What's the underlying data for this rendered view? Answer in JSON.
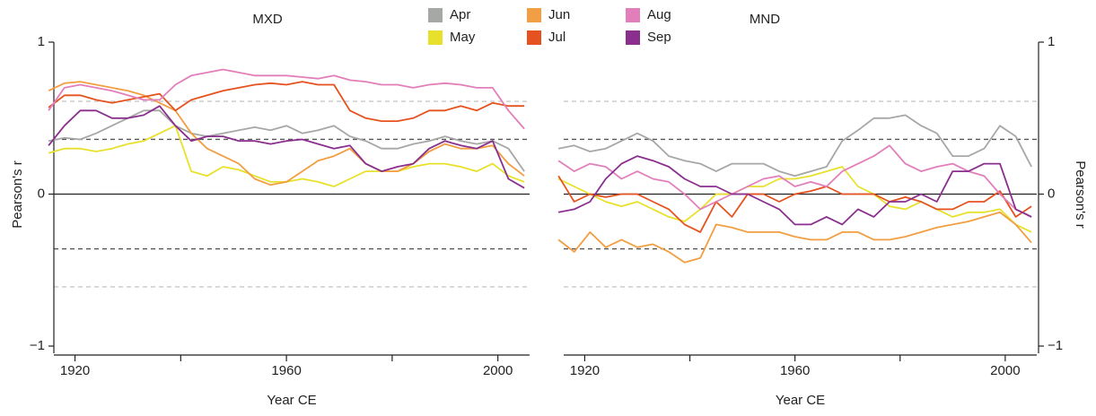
{
  "chart_data": [
    {
      "type": "line",
      "title": "MXD",
      "xlabel": "Year CE",
      "ylabel": "Pearson's r",
      "x": [
        1915,
        1918,
        1921,
        1924,
        1927,
        1930,
        1933,
        1936,
        1939,
        1942,
        1945,
        1948,
        1951,
        1954,
        1957,
        1960,
        1963,
        1966,
        1969,
        1972,
        1975,
        1978,
        1981,
        1984,
        1987,
        1990,
        1993,
        1996,
        1999,
        2002,
        2005
      ],
      "xlim": [
        1916,
        2006
      ],
      "xticks": [
        1920,
        1960,
        2000
      ],
      "xminorticks": [
        1940,
        1980
      ],
      "ylim": [
        -1,
        1
      ],
      "yticks": [
        {
          "value": -1,
          "label": "−1"
        },
        0,
        1
      ],
      "yaxis_side": "left",
      "reference_lines": [
        {
          "value": 0.61,
          "color": "#c8c8c8"
        },
        {
          "value": 0.36,
          "color": "#555555"
        },
        {
          "value": -0.36,
          "color": "#555555"
        },
        {
          "value": -0.61,
          "color": "#c8c8c8"
        }
      ],
      "series": [
        {
          "name": "Apr",
          "color": "#a5a8a5",
          "values": [
            0.35,
            0.37,
            0.36,
            0.4,
            0.45,
            0.5,
            0.55,
            0.55,
            0.45,
            0.4,
            0.38,
            0.4,
            0.42,
            0.44,
            0.42,
            0.45,
            0.4,
            0.42,
            0.45,
            0.38,
            0.35,
            0.3,
            0.3,
            0.33,
            0.35,
            0.38,
            0.35,
            0.33,
            0.35,
            0.3,
            0.15
          ]
        },
        {
          "name": "May",
          "color": "#e8e12c",
          "values": [
            0.27,
            0.3,
            0.3,
            0.28,
            0.3,
            0.33,
            0.35,
            0.4,
            0.45,
            0.15,
            0.12,
            0.18,
            0.16,
            0.12,
            0.08,
            0.08,
            0.1,
            0.08,
            0.05,
            0.1,
            0.15,
            0.15,
            0.15,
            0.18,
            0.2,
            0.2,
            0.18,
            0.15,
            0.2,
            0.12,
            0.08
          ]
        },
        {
          "name": "Jun",
          "color": "#f29e42",
          "values": [
            0.68,
            0.73,
            0.74,
            0.72,
            0.7,
            0.68,
            0.65,
            0.6,
            0.55,
            0.4,
            0.3,
            0.25,
            0.2,
            0.1,
            0.06,
            0.08,
            0.15,
            0.22,
            0.25,
            0.3,
            0.2,
            0.15,
            0.15,
            0.2,
            0.28,
            0.33,
            0.3,
            0.3,
            0.32,
            0.2,
            0.12
          ]
        },
        {
          "name": "Jul",
          "color": "#e6521f",
          "values": [
            0.57,
            0.65,
            0.65,
            0.62,
            0.6,
            0.62,
            0.64,
            0.66,
            0.55,
            0.62,
            0.65,
            0.68,
            0.7,
            0.72,
            0.73,
            0.72,
            0.74,
            0.72,
            0.72,
            0.55,
            0.5,
            0.48,
            0.48,
            0.5,
            0.55,
            0.55,
            0.58,
            0.55,
            0.6,
            0.58,
            0.58
          ]
        },
        {
          "name": "Aug",
          "color": "#e27fba",
          "values": [
            0.55,
            0.7,
            0.72,
            0.7,
            0.68,
            0.65,
            0.62,
            0.62,
            0.72,
            0.78,
            0.8,
            0.82,
            0.8,
            0.78,
            0.78,
            0.78,
            0.77,
            0.76,
            0.78,
            0.75,
            0.74,
            0.72,
            0.72,
            0.7,
            0.72,
            0.73,
            0.72,
            0.7,
            0.7,
            0.55,
            0.43
          ]
        },
        {
          "name": "Sep",
          "color": "#8a2f8e",
          "values": [
            0.32,
            0.45,
            0.55,
            0.55,
            0.5,
            0.5,
            0.52,
            0.58,
            0.45,
            0.35,
            0.38,
            0.38,
            0.35,
            0.35,
            0.33,
            0.35,
            0.36,
            0.33,
            0.3,
            0.32,
            0.2,
            0.15,
            0.18,
            0.2,
            0.3,
            0.35,
            0.32,
            0.3,
            0.35,
            0.1,
            0.04
          ]
        }
      ]
    },
    {
      "type": "line",
      "title": "MND",
      "xlabel": "Year CE",
      "ylabel": "Pearson's r",
      "x": [
        1915,
        1918,
        1921,
        1924,
        1927,
        1930,
        1933,
        1936,
        1939,
        1942,
        1945,
        1948,
        1951,
        1954,
        1957,
        1960,
        1963,
        1966,
        1969,
        1972,
        1975,
        1978,
        1981,
        1984,
        1987,
        1990,
        1993,
        1996,
        1999,
        2002,
        2005
      ],
      "xlim": [
        1916,
        2006
      ],
      "xticks": [
        1920,
        1960,
        2000
      ],
      "xminorticks": [
        1940,
        1980
      ],
      "ylim": [
        -1,
        1
      ],
      "yticks": [
        {
          "value": -1,
          "label": "−1"
        },
        0,
        1
      ],
      "yaxis_side": "right",
      "reference_lines": [
        {
          "value": 0.61,
          "color": "#c8c8c8"
        },
        {
          "value": 0.36,
          "color": "#555555"
        },
        {
          "value": -0.36,
          "color": "#555555"
        },
        {
          "value": -0.61,
          "color": "#c8c8c8"
        }
      ],
      "series": [
        {
          "values": [
            0.3,
            0.32,
            0.28,
            0.3,
            0.35,
            0.4,
            0.35,
            0.25,
            0.22,
            0.2,
            0.15,
            0.2,
            0.2,
            0.2,
            0.15,
            0.12,
            0.15,
            0.18,
            0.35,
            0.42,
            0.5,
            0.5,
            0.52,
            0.45,
            0.4,
            0.25,
            0.25,
            0.3,
            0.45,
            0.38,
            0.18
          ]
        },
        {
          "values": [
            0.1,
            0.05,
            0.0,
            -0.05,
            -0.08,
            -0.05,
            -0.1,
            -0.15,
            -0.18,
            -0.1,
            0.0,
            0.0,
            0.05,
            0.05,
            0.1,
            0.1,
            0.12,
            0.15,
            0.18,
            0.05,
            0.0,
            -0.08,
            -0.1,
            -0.05,
            -0.1,
            -0.15,
            -0.12,
            -0.12,
            -0.1,
            -0.2,
            -0.25
          ]
        },
        {
          "values": [
            -0.3,
            -0.38,
            -0.25,
            -0.35,
            -0.3,
            -0.35,
            -0.33,
            -0.38,
            -0.45,
            -0.42,
            -0.2,
            -0.22,
            -0.25,
            -0.25,
            -0.25,
            -0.28,
            -0.3,
            -0.3,
            -0.25,
            -0.25,
            -0.3,
            -0.3,
            -0.28,
            -0.25,
            -0.22,
            -0.2,
            -0.18,
            -0.15,
            -0.12,
            -0.2,
            -0.32
          ]
        },
        {
          "values": [
            0.12,
            -0.05,
            0.0,
            -0.02,
            0.0,
            0.0,
            -0.05,
            -0.1,
            -0.2,
            -0.25,
            -0.05,
            -0.15,
            0.0,
            0.0,
            -0.05,
            0.0,
            0.02,
            0.05,
            0.0,
            0.0,
            0.0,
            -0.05,
            -0.02,
            -0.05,
            -0.1,
            -0.1,
            -0.05,
            -0.05,
            0.02,
            -0.15,
            -0.08
          ]
        },
        {
          "values": [
            0.22,
            0.15,
            0.2,
            0.18,
            0.1,
            0.15,
            0.1,
            0.08,
            0.0,
            -0.1,
            -0.05,
            0.0,
            0.05,
            0.1,
            0.12,
            0.05,
            0.08,
            0.05,
            0.15,
            0.2,
            0.25,
            0.32,
            0.2,
            0.15,
            0.18,
            0.2,
            0.15,
            0.12,
            0.0,
            -0.1,
            -0.15
          ]
        },
        {
          "values": [
            -0.12,
            -0.1,
            -0.05,
            0.1,
            0.2,
            0.25,
            0.22,
            0.18,
            0.1,
            0.05,
            0.05,
            0.0,
            0.0,
            -0.05,
            -0.1,
            -0.2,
            -0.2,
            -0.15,
            -0.2,
            -0.1,
            -0.15,
            -0.05,
            -0.05,
            0.0,
            -0.05,
            0.15,
            0.15,
            0.2,
            0.2,
            -0.1,
            -0.15
          ]
        }
      ]
    }
  ]
}
